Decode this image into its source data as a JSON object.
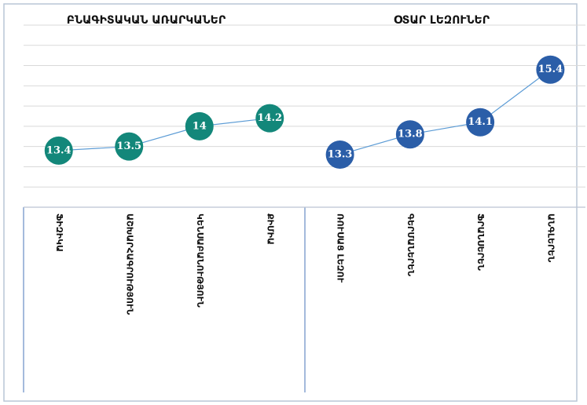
{
  "chart_data": [
    {
      "type": "line",
      "title": "ԲՆԱԳԻՏԱԿԱՆ ԱՌԱՐԿԱՆԵՐ",
      "categories": [
        "ՖԻԶԻԿԱ",
        "ԱՇԽԱՐՀԱԳՐՈՒԹՅՈՒՆ",
        "ԿԵՆՍԱԲԱՆՈՒԹՅՈՒՆ",
        "ՔԻՄԻԱ"
      ],
      "values": [
        13.4,
        13.5,
        14.0,
        14.2
      ],
      "color": "#13877a",
      "ylim": [
        12,
        16.5
      ],
      "yticks": [
        12,
        12.5,
        13,
        13.5,
        14,
        14.5,
        15,
        15.5,
        16,
        16.5
      ],
      "grid": true
    },
    {
      "type": "line",
      "title": "ՕՏԱՐ ԼԵԶՈՒՆԵՐ",
      "categories": [
        "ՌՈՒՍԱՑ ԼԵԶՈՒ",
        "ԳԵՐՄԱՆԵՐԵՆ",
        "ՖՐԱՆՍԵՐԵՆ",
        "ԱՆԳԼԵՐԵՆ"
      ],
      "values": [
        13.3,
        13.8,
        14.1,
        15.4
      ],
      "color": "#2b5ea8",
      "ylim": [
        12,
        16.5
      ],
      "yticks": [
        12,
        12.5,
        13,
        13.5,
        14,
        14.5,
        15,
        15.5,
        16,
        16.5
      ],
      "grid": true
    }
  ]
}
